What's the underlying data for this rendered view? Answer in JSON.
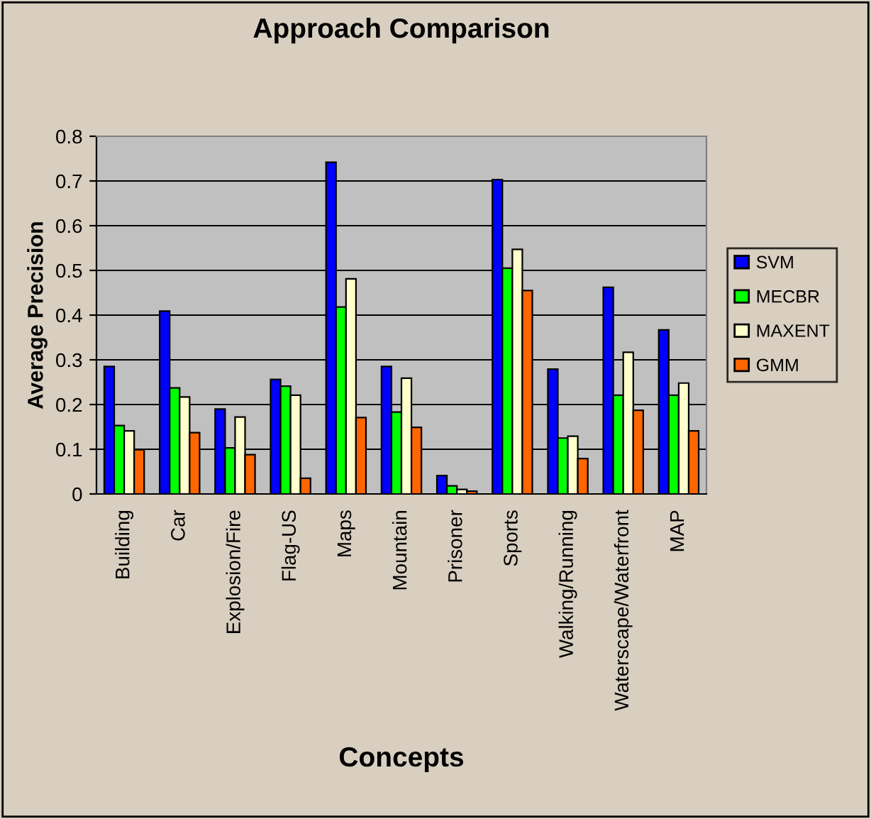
{
  "chart_data": {
    "type": "bar",
    "title": "Approach Comparison",
    "xlabel": "Concepts",
    "ylabel": "Average Precision",
    "categories": [
      "Building",
      "Car",
      "Explosion/Fire",
      "Flag-US",
      "Maps",
      "Mountain",
      "Prisoner",
      "Sports",
      "Walking/Running",
      "Waterscape/Waterfront",
      "MAP"
    ],
    "series": [
      {
        "name": "SVM",
        "color": "#0000ff",
        "values": [
          0.285,
          0.409,
          0.19,
          0.256,
          0.742,
          0.285,
          0.041,
          0.703,
          0.279,
          0.462,
          0.367
        ]
      },
      {
        "name": "MECBR",
        "color": "#00ff00",
        "values": [
          0.153,
          0.237,
          0.103,
          0.241,
          0.418,
          0.183,
          0.018,
          0.505,
          0.125,
          0.221,
          0.221
        ]
      },
      {
        "name": "MAXENT",
        "color": "#ffffcc",
        "values": [
          0.141,
          0.217,
          0.172,
          0.221,
          0.481,
          0.259,
          0.01,
          0.547,
          0.129,
          0.317,
          0.248
        ]
      },
      {
        "name": "GMM",
        "color": "#ff6600",
        "values": [
          0.099,
          0.137,
          0.088,
          0.035,
          0.171,
          0.149,
          0.006,
          0.455,
          0.079,
          0.187,
          0.141
        ]
      }
    ],
    "ylim": [
      0,
      0.8
    ],
    "yticks": [
      0,
      0.1,
      0.2,
      0.3,
      0.4,
      0.5,
      0.6,
      0.7,
      0.8
    ],
    "grid": "y",
    "legend": "right"
  }
}
